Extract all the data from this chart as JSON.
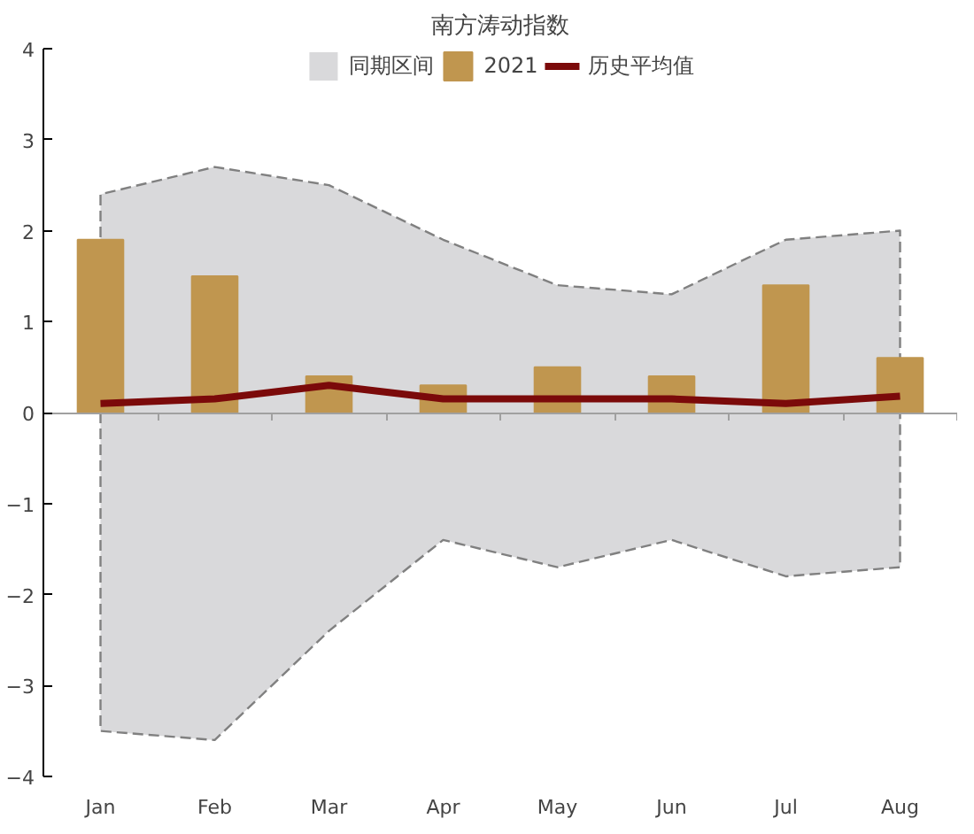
{
  "chart_data": {
    "type": "bar",
    "title": "南方涛动指数",
    "categories": [
      "Jan",
      "Feb",
      "Mar",
      "Apr",
      "May",
      "Jun",
      "Jul",
      "Aug"
    ],
    "series": [
      {
        "name": "同期区间",
        "type": "area",
        "color": "#d9d9db",
        "line_style": "dashed",
        "values": [
          2.4,
          2.7,
          2.5,
          1.9,
          1.4,
          1.3,
          1.9,
          2.0
        ]
      },
      {
        "type": "area",
        "color": "#d9d9db",
        "line_style": "dashed",
        "values": [
          -3.5,
          -3.6,
          -2.4,
          -1.4,
          -1.7,
          -1.4,
          -1.8,
          -1.7
        ]
      },
      {
        "name": "2021",
        "color": "#c0964f",
        "values": [
          1.9,
          1.5,
          0.4,
          0.3,
          0.5,
          0.4,
          1.4,
          0.6
        ]
      },
      {
        "name": "历史平均值",
        "type": "line",
        "color": "#7b0a0a",
        "line_style": "solid",
        "values": [
          0.1,
          0.15,
          0.3,
          0.15,
          0.15,
          0.15,
          0.1,
          0.18
        ]
      }
    ],
    "ylim": [
      -4,
      4
    ],
    "yticks": [
      -4,
      -3,
      -2,
      -1,
      0,
      1,
      2,
      3,
      4
    ],
    "legend": "top"
  }
}
